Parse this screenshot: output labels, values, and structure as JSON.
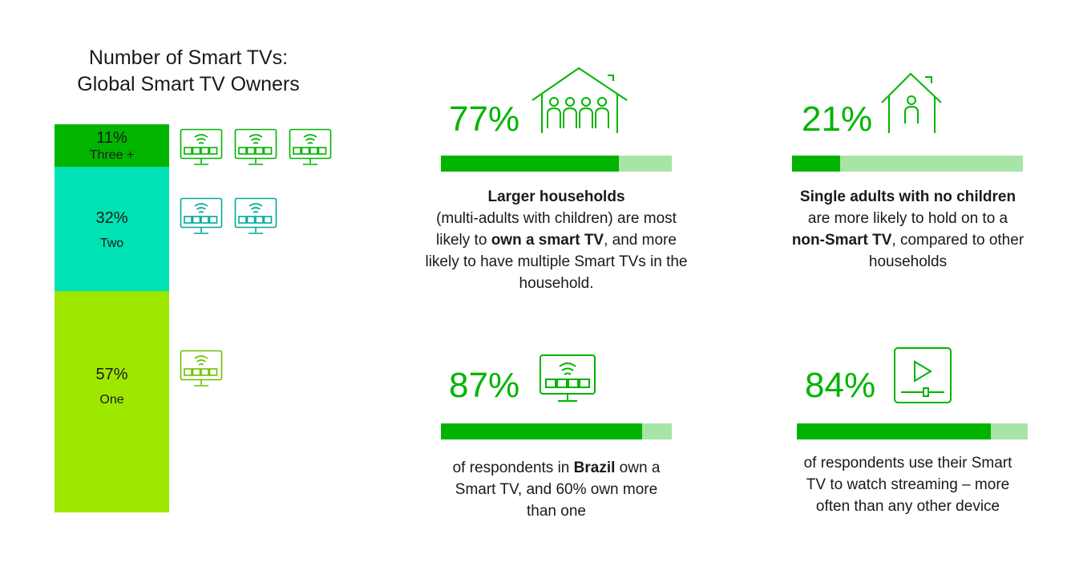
{
  "chart_data": {
    "type": "bar",
    "title": "Number of Smart TVs:",
    "subtitle": "Global Smart TV Owners",
    "stacked": true,
    "categories": [
      "Three +",
      "Two",
      "One"
    ],
    "values": [
      11,
      32,
      57
    ],
    "value_labels": [
      "11%",
      "32%",
      "57%"
    ],
    "colors": [
      "#00b400",
      "#00e2b4",
      "#9ee800"
    ],
    "icon_counts": [
      3,
      2,
      1
    ]
  },
  "stats": {
    "larger_households": {
      "value": 77,
      "label": "77%",
      "icon": "house-family-icon",
      "text": {
        "b1": "Larger households",
        "t1": "(multi-adults with children) are most likely to ",
        "b2": "own a smart TV",
        "t2": ", and more likely to have multiple Smart TVs in the household."
      }
    },
    "single_adults": {
      "value": 21,
      "label": "21%",
      "icon": "house-person-icon",
      "text": {
        "b1": "Single adults with no children",
        "t1": " are more likely to hold on to a ",
        "b2": "non-Smart TV",
        "t2": ", compared to other households"
      }
    },
    "brazil": {
      "value": 87,
      "label": "87%",
      "icon": "smart-tv-icon",
      "text": {
        "t0": "of respondents in ",
        "b1": "Brazil",
        "t1": " own a Smart TV, and 60% own more than one"
      }
    },
    "streaming": {
      "value": 84,
      "label": "84%",
      "icon": "video-player-icon",
      "text": {
        "t0": "of respondents use their Smart TV to watch streaming – more often than any other device"
      }
    }
  },
  "colors": {
    "accent_green": "#00b400",
    "bar_track": "#a8e4a6",
    "teal": "#00e2b4",
    "lime": "#9ee800"
  }
}
